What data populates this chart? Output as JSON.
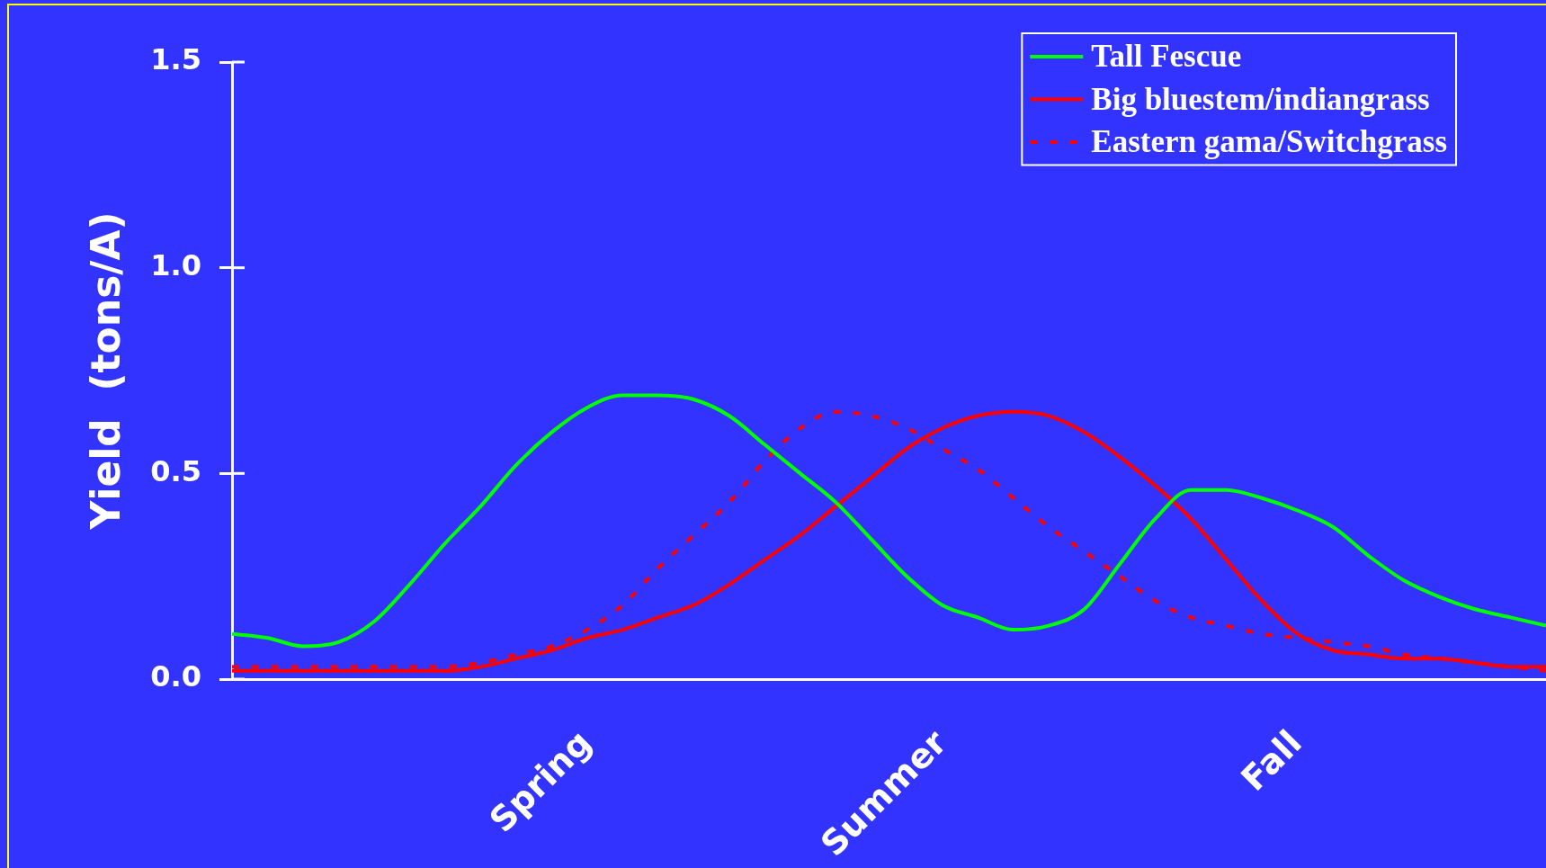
{
  "chart_data": {
    "type": "line",
    "ylabel": "Yield  (tons/A)",
    "categories": [
      null,
      null,
      null,
      null,
      null,
      null,
      null,
      null,
      null,
      null,
      "Spring",
      null,
      null,
      null,
      null,
      null,
      null,
      null,
      null,
      null,
      "Summer",
      null,
      null,
      null,
      null,
      null,
      null,
      null,
      null,
      null,
      "Fall",
      null,
      null,
      null,
      null,
      null,
      null,
      null
    ],
    "series": [
      {
        "name": "Tall Fescue",
        "color": "#00ff00",
        "values": [
          0.11,
          0.1,
          0.08,
          0.09,
          0.14,
          0.23,
          0.33,
          0.42,
          0.52,
          0.6,
          0.66,
          0.69,
          0.69,
          0.68,
          0.64,
          0.57,
          0.5,
          0.43,
          0.34,
          0.25,
          0.18,
          0.15,
          0.12,
          0.13,
          0.17,
          0.28,
          0.39,
          0.46,
          0.46,
          0.44,
          0.41,
          0.37,
          0.3,
          0.24,
          0.2,
          0.17,
          0.15,
          0.13
        ]
      },
      {
        "name": "Big bluestem/indiangrass",
        "color": "#ff0000",
        "values": [
          0.02,
          0.02,
          0.02,
          0.02,
          0.02,
          0.02,
          0.02,
          0.03,
          0.05,
          0.07,
          0.1,
          0.12,
          0.15,
          0.18,
          0.23,
          0.29,
          0.35,
          0.42,
          0.49,
          0.56,
          0.61,
          0.64,
          0.65,
          0.64,
          0.6,
          0.54,
          0.47,
          0.39,
          0.29,
          0.19,
          0.11,
          0.07,
          0.06,
          0.05,
          0.05,
          0.04,
          0.03,
          0.03
        ]
      },
      {
        "name": "Eastern gama/Switchgrass",
        "color": "#ff0000",
        "line_style": "dotted",
        "values": [
          0.03,
          0.03,
          0.03,
          0.03,
          0.03,
          0.03,
          0.03,
          0.04,
          0.06,
          0.08,
          0.12,
          0.18,
          0.27,
          0.35,
          0.43,
          0.53,
          0.61,
          0.65,
          0.64,
          0.61,
          0.56,
          0.51,
          0.44,
          0.37,
          0.31,
          0.25,
          0.19,
          0.15,
          0.13,
          0.11,
          0.1,
          0.09,
          0.08,
          0.06,
          0.05,
          0.04,
          0.03,
          0.02
        ]
      }
    ],
    "ylim": [
      0,
      1.5
    ],
    "yticks": [
      {
        "value": 0,
        "label": "0.0"
      },
      {
        "value": 0.5,
        "label": "0.5"
      },
      {
        "value": 1,
        "label": "1.0"
      },
      {
        "value": 1.5,
        "label": "1.5"
      }
    ],
    "legend": "top right",
    "marker": "none",
    "line_style": "solid"
  }
}
